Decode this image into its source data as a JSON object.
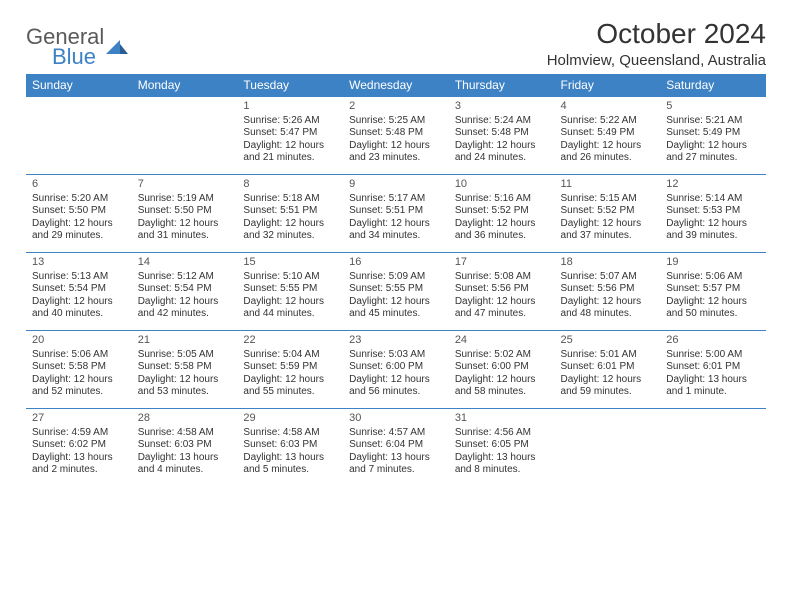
{
  "brand": {
    "part1": "General",
    "part2": "Blue"
  },
  "title": "October 2024",
  "location": "Holmview, Queensland, Australia",
  "colors": {
    "header_bg": "#3d82c4",
    "header_text": "#ffffff",
    "border": "#3d82c4",
    "text": "#333333",
    "logo_gray": "#5a5a5a",
    "logo_blue": "#3d82c4",
    "background": "#ffffff"
  },
  "typography": {
    "title_fontsize": 28,
    "location_fontsize": 15,
    "dayhead_fontsize": 12,
    "daynum_fontsize": 11,
    "cell_fontsize": 10
  },
  "day_headers": [
    "Sunday",
    "Monday",
    "Tuesday",
    "Wednesday",
    "Thursday",
    "Friday",
    "Saturday"
  ],
  "weeks": [
    [
      null,
      null,
      {
        "n": "1",
        "sr": "5:26 AM",
        "ss": "5:47 PM",
        "dl": "12 hours and 21 minutes."
      },
      {
        "n": "2",
        "sr": "5:25 AM",
        "ss": "5:48 PM",
        "dl": "12 hours and 23 minutes."
      },
      {
        "n": "3",
        "sr": "5:24 AM",
        "ss": "5:48 PM",
        "dl": "12 hours and 24 minutes."
      },
      {
        "n": "4",
        "sr": "5:22 AM",
        "ss": "5:49 PM",
        "dl": "12 hours and 26 minutes."
      },
      {
        "n": "5",
        "sr": "5:21 AM",
        "ss": "5:49 PM",
        "dl": "12 hours and 27 minutes."
      }
    ],
    [
      {
        "n": "6",
        "sr": "5:20 AM",
        "ss": "5:50 PM",
        "dl": "12 hours and 29 minutes."
      },
      {
        "n": "7",
        "sr": "5:19 AM",
        "ss": "5:50 PM",
        "dl": "12 hours and 31 minutes."
      },
      {
        "n": "8",
        "sr": "5:18 AM",
        "ss": "5:51 PM",
        "dl": "12 hours and 32 minutes."
      },
      {
        "n": "9",
        "sr": "5:17 AM",
        "ss": "5:51 PM",
        "dl": "12 hours and 34 minutes."
      },
      {
        "n": "10",
        "sr": "5:16 AM",
        "ss": "5:52 PM",
        "dl": "12 hours and 36 minutes."
      },
      {
        "n": "11",
        "sr": "5:15 AM",
        "ss": "5:52 PM",
        "dl": "12 hours and 37 minutes."
      },
      {
        "n": "12",
        "sr": "5:14 AM",
        "ss": "5:53 PM",
        "dl": "12 hours and 39 minutes."
      }
    ],
    [
      {
        "n": "13",
        "sr": "5:13 AM",
        "ss": "5:54 PM",
        "dl": "12 hours and 40 minutes."
      },
      {
        "n": "14",
        "sr": "5:12 AM",
        "ss": "5:54 PM",
        "dl": "12 hours and 42 minutes."
      },
      {
        "n": "15",
        "sr": "5:10 AM",
        "ss": "5:55 PM",
        "dl": "12 hours and 44 minutes."
      },
      {
        "n": "16",
        "sr": "5:09 AM",
        "ss": "5:55 PM",
        "dl": "12 hours and 45 minutes."
      },
      {
        "n": "17",
        "sr": "5:08 AM",
        "ss": "5:56 PM",
        "dl": "12 hours and 47 minutes."
      },
      {
        "n": "18",
        "sr": "5:07 AM",
        "ss": "5:56 PM",
        "dl": "12 hours and 48 minutes."
      },
      {
        "n": "19",
        "sr": "5:06 AM",
        "ss": "5:57 PM",
        "dl": "12 hours and 50 minutes."
      }
    ],
    [
      {
        "n": "20",
        "sr": "5:06 AM",
        "ss": "5:58 PM",
        "dl": "12 hours and 52 minutes."
      },
      {
        "n": "21",
        "sr": "5:05 AM",
        "ss": "5:58 PM",
        "dl": "12 hours and 53 minutes."
      },
      {
        "n": "22",
        "sr": "5:04 AM",
        "ss": "5:59 PM",
        "dl": "12 hours and 55 minutes."
      },
      {
        "n": "23",
        "sr": "5:03 AM",
        "ss": "6:00 PM",
        "dl": "12 hours and 56 minutes."
      },
      {
        "n": "24",
        "sr": "5:02 AM",
        "ss": "6:00 PM",
        "dl": "12 hours and 58 minutes."
      },
      {
        "n": "25",
        "sr": "5:01 AM",
        "ss": "6:01 PM",
        "dl": "12 hours and 59 minutes."
      },
      {
        "n": "26",
        "sr": "5:00 AM",
        "ss": "6:01 PM",
        "dl": "13 hours and 1 minute."
      }
    ],
    [
      {
        "n": "27",
        "sr": "4:59 AM",
        "ss": "6:02 PM",
        "dl": "13 hours and 2 minutes."
      },
      {
        "n": "28",
        "sr": "4:58 AM",
        "ss": "6:03 PM",
        "dl": "13 hours and 4 minutes."
      },
      {
        "n": "29",
        "sr": "4:58 AM",
        "ss": "6:03 PM",
        "dl": "13 hours and 5 minutes."
      },
      {
        "n": "30",
        "sr": "4:57 AM",
        "ss": "6:04 PM",
        "dl": "13 hours and 7 minutes."
      },
      {
        "n": "31",
        "sr": "4:56 AM",
        "ss": "6:05 PM",
        "dl": "13 hours and 8 minutes."
      },
      null,
      null
    ]
  ],
  "labels": {
    "sunrise": "Sunrise:",
    "sunset": "Sunset:",
    "daylight": "Daylight:"
  }
}
